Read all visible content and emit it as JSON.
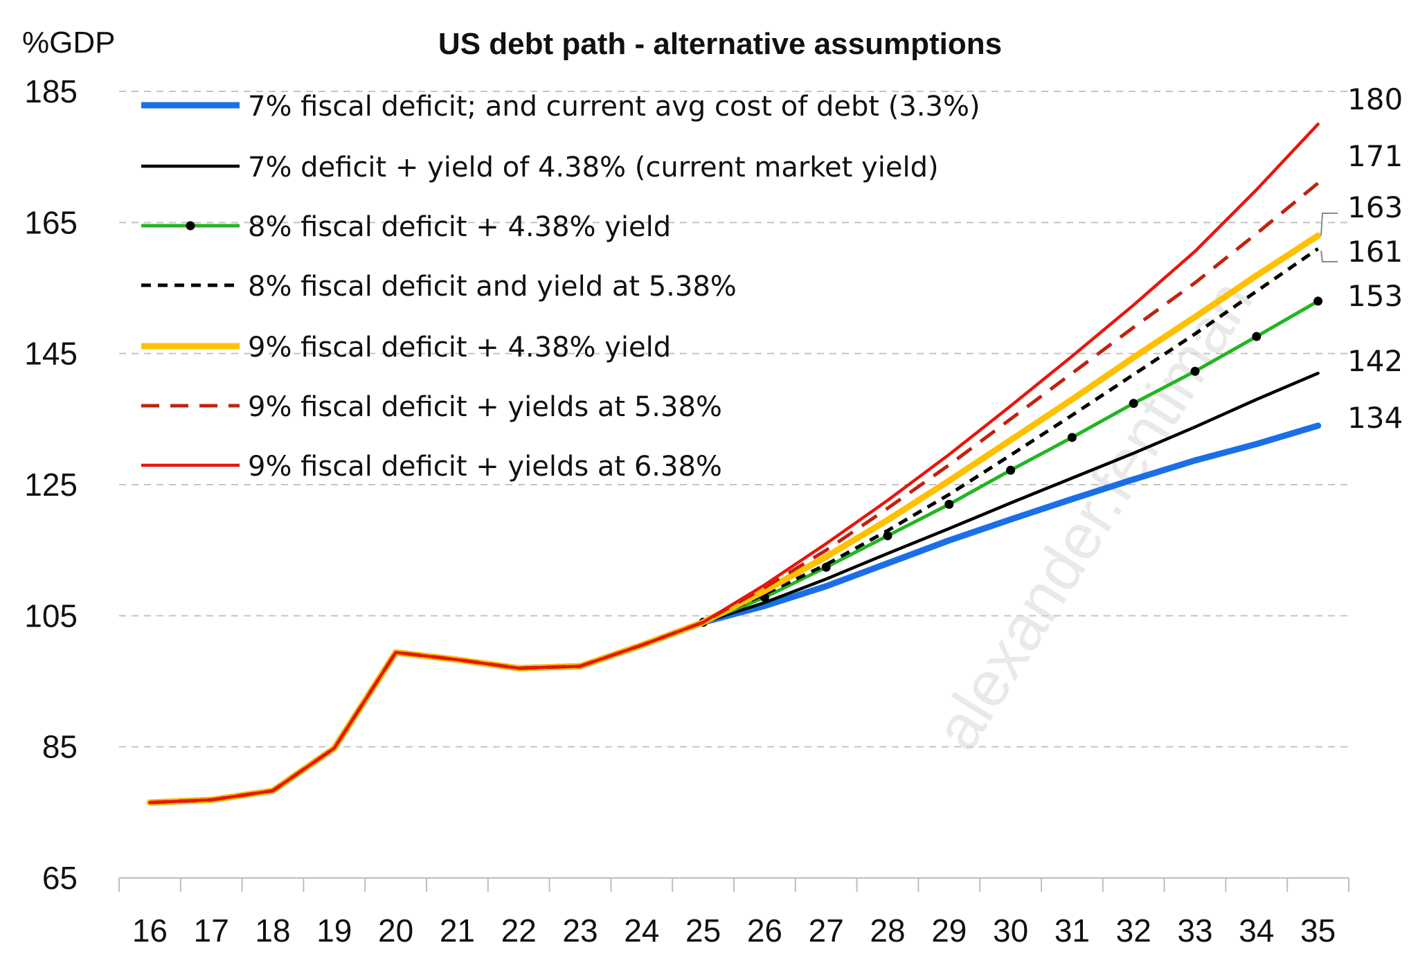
{
  "chart_data": {
    "type": "line",
    "title": "US debt path - alternative assumptions",
    "ylabel": "%GDP",
    "xlabel": "",
    "ylim": [
      65,
      185
    ],
    "yticks": [
      65,
      85,
      105,
      125,
      145,
      165,
      185
    ],
    "x": [
      "16",
      "17",
      "18",
      "19",
      "20",
      "21",
      "22",
      "23",
      "24",
      "25",
      "26",
      "27",
      "28",
      "29",
      "30",
      "31",
      "32",
      "33",
      "34",
      "35"
    ],
    "grid": "horizontal-dashed",
    "legend_position": "top-left",
    "series": [
      {
        "name": "7% fiscal deficit; and current avg cost of debt (3.3%)",
        "color": "#1a6fe8",
        "style": "solid-thick",
        "values": [
          76.5,
          76.9,
          78.3,
          84.8,
          99.4,
          98.3,
          97.0,
          97.3,
          100.5,
          104.0,
          106.5,
          109.5,
          113.0,
          116.5,
          119.7,
          122.8,
          125.8,
          128.7,
          131.2,
          134
        ]
      },
      {
        "name": "7% deficit + yield of 4.38% (current market yield)",
        "color": "#000000",
        "style": "solid",
        "values": [
          76.5,
          76.9,
          78.3,
          84.8,
          99.4,
          98.3,
          97.0,
          97.3,
          100.5,
          104.0,
          107.0,
          110.6,
          114.5,
          118.3,
          122.2,
          126.0,
          129.8,
          133.8,
          138.0,
          142
        ]
      },
      {
        "name": "8% fiscal deficit + 4.38% yield",
        "color": "#22b522",
        "style": "solid-markers",
        "values": [
          76.5,
          76.9,
          78.3,
          84.8,
          99.4,
          98.3,
          97.0,
          97.3,
          100.5,
          104.0,
          107.8,
          112.4,
          117.2,
          122.0,
          127.2,
          132.2,
          137.4,
          142.3,
          147.6,
          153
        ]
      },
      {
        "name": "8% fiscal deficit and yield at 5.38%",
        "color": "#000000",
        "style": "dashed-short",
        "values": [
          76.5,
          76.9,
          78.3,
          84.8,
          99.4,
          98.3,
          97.0,
          97.3,
          100.5,
          104.0,
          108.3,
          112.8,
          118.0,
          123.5,
          129.5,
          135.6,
          141.8,
          148.0,
          154.5,
          161
        ]
      },
      {
        "name": "9% fiscal deficit + 4.38% yield",
        "color": "#ffc000",
        "style": "solid-thick",
        "values": [
          76.5,
          76.9,
          78.3,
          84.8,
          99.4,
          98.3,
          97.0,
          97.3,
          100.5,
          104.0,
          108.8,
          114.0,
          119.6,
          125.6,
          131.8,
          138.0,
          144.4,
          150.6,
          156.9,
          163
        ]
      },
      {
        "name": "9% fiscal deficit + yields at 5.38%",
        "color": "#c0220f",
        "style": "dashed-long",
        "values": [
          76.5,
          76.9,
          78.3,
          84.8,
          99.4,
          98.3,
          97.0,
          97.3,
          100.5,
          104.0,
          109.3,
          115.0,
          121.4,
          128.0,
          135.0,
          142.0,
          149.0,
          155.8,
          163.3,
          171
        ]
      },
      {
        "name": "9% fiscal deficit + yields at 6.38%",
        "color": "#e8150c",
        "style": "solid",
        "values": [
          76.5,
          76.9,
          78.3,
          84.8,
          99.4,
          98.3,
          97.0,
          97.3,
          100.5,
          104.0,
          109.7,
          116.0,
          122.6,
          129.6,
          137.0,
          144.6,
          152.4,
          160.6,
          170.0,
          180
        ]
      }
    ],
    "end_labels": [
      "180",
      "171",
      "163",
      "161",
      "153",
      "142",
      "134"
    ],
    "watermark": "alexander.fentiman"
  }
}
